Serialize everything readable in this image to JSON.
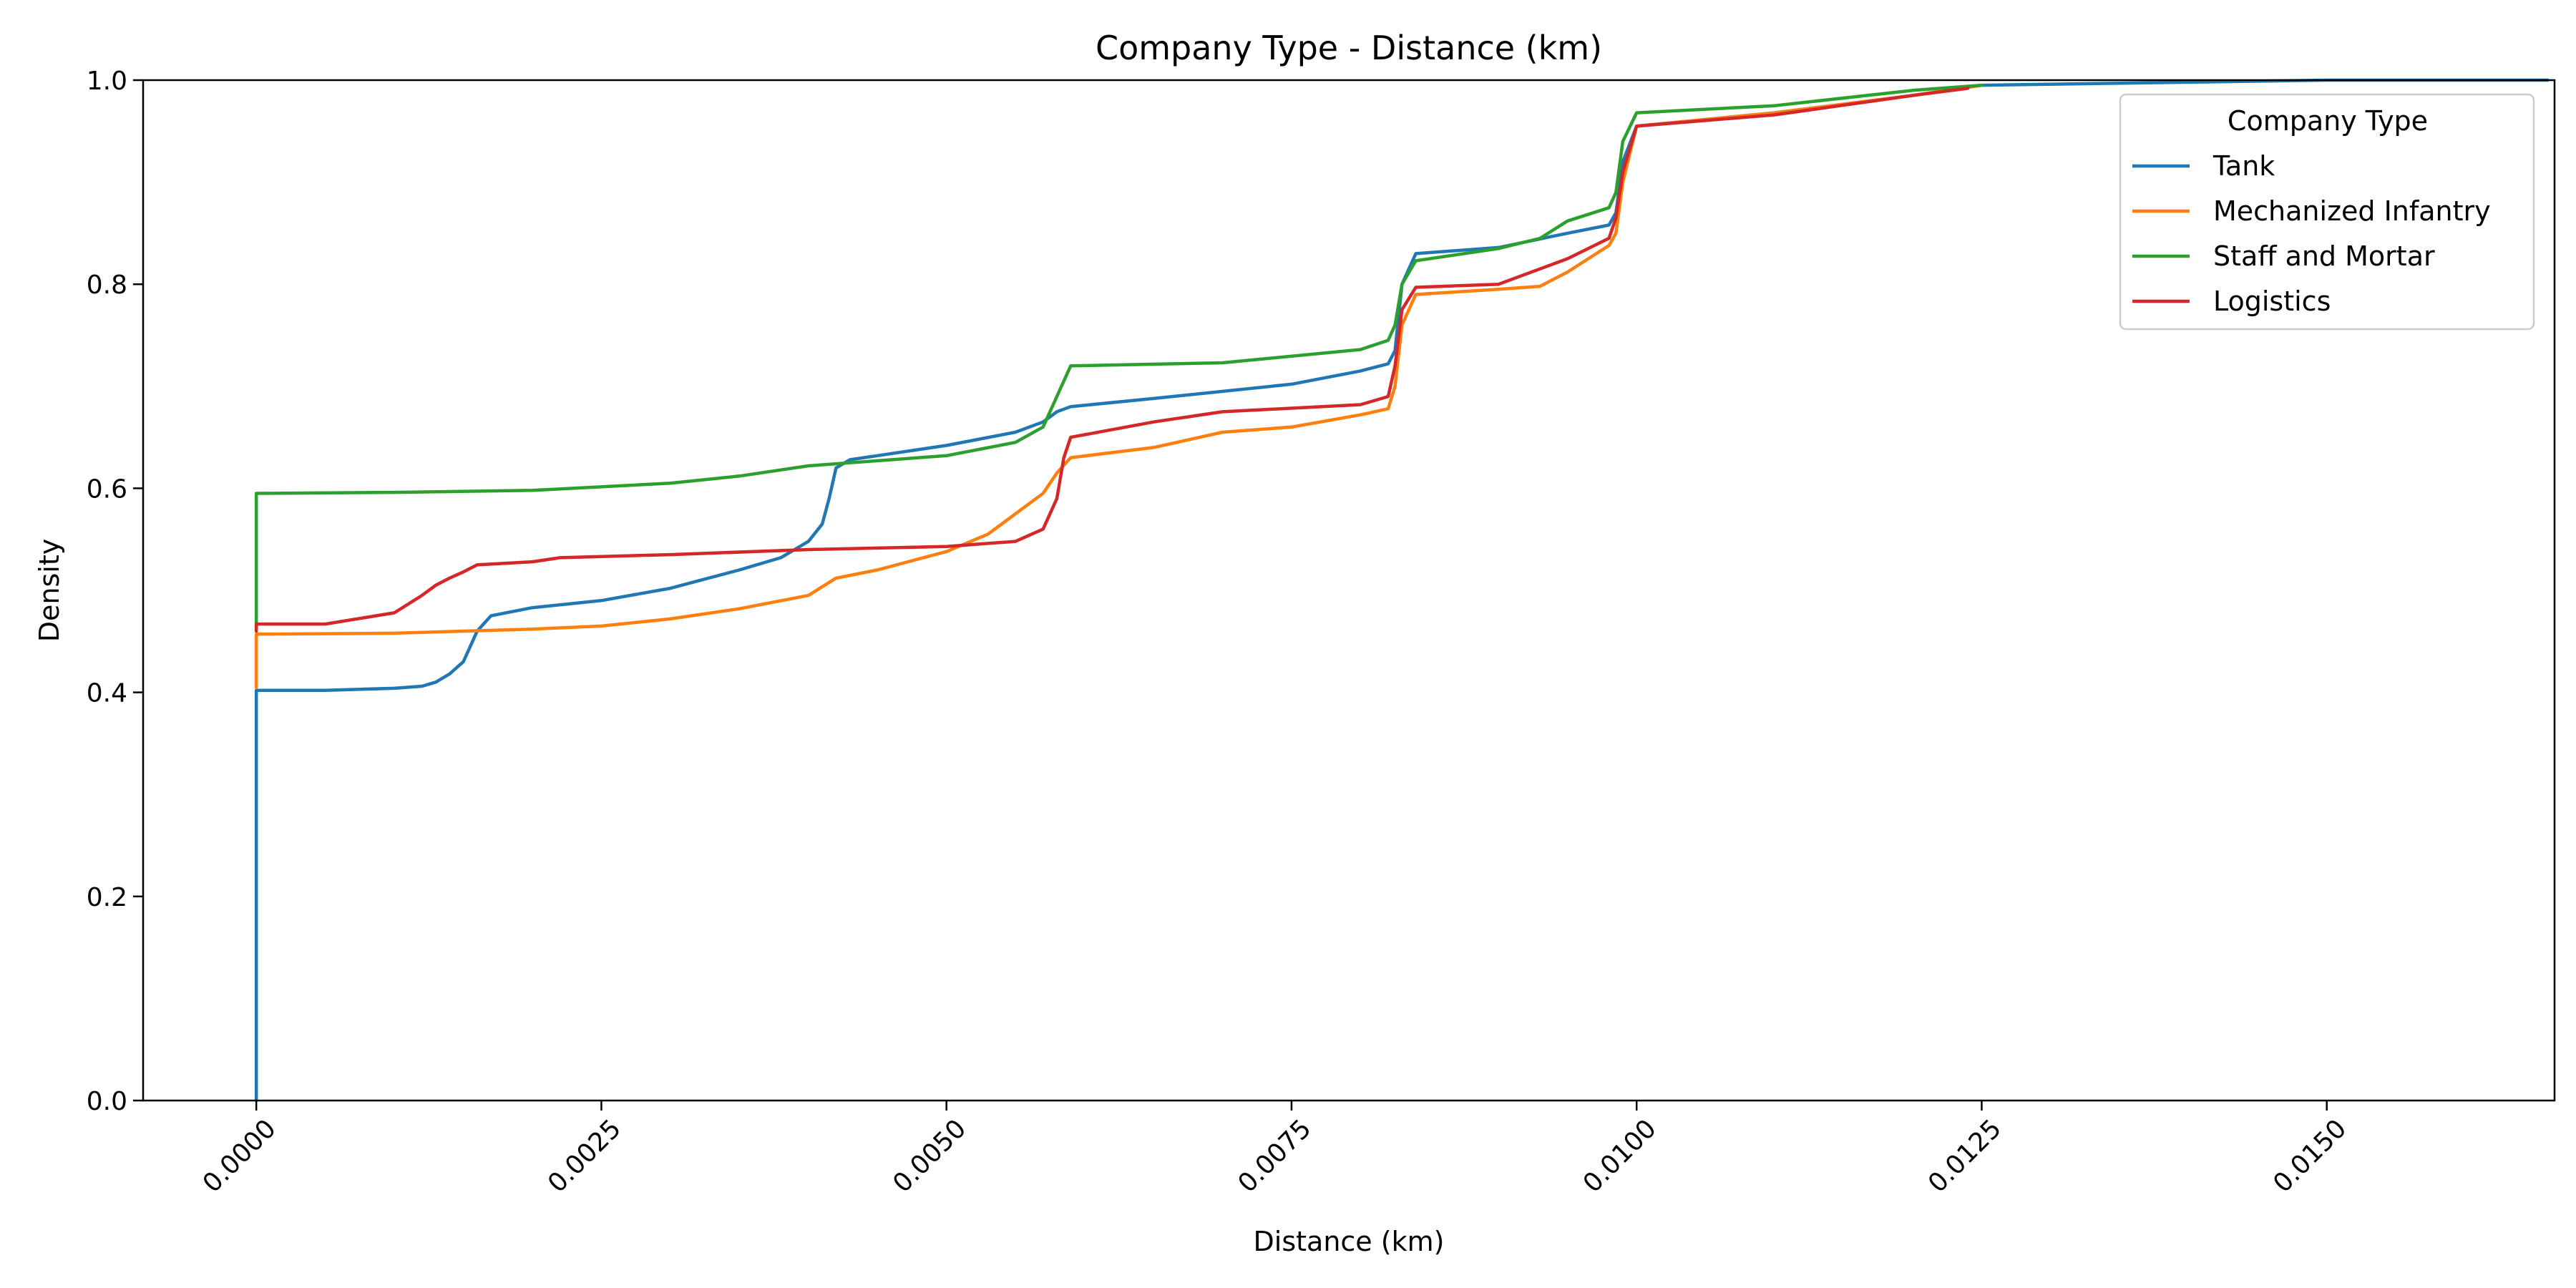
{
  "chart_data": {
    "type": "line",
    "title": "Company Type - Distance (km)",
    "xlabel": "Distance (km)",
    "ylabel": "Density",
    "xlim": [
      -0.00082,
      0.01665
    ],
    "ylim": [
      0.0,
      1.0
    ],
    "x_ticks": [
      0.0,
      0.0025,
      0.005,
      0.0075,
      0.01,
      0.0125,
      0.015
    ],
    "x_tick_labels": [
      "0.0000",
      "0.0025",
      "0.0050",
      "0.0075",
      "0.0100",
      "0.0125",
      "0.0150"
    ],
    "y_ticks": [
      0.0,
      0.2,
      0.4,
      0.6,
      0.8,
      1.0
    ],
    "y_tick_labels": [
      "0.0",
      "0.2",
      "0.4",
      "0.6",
      "0.8",
      "1.0"
    ],
    "grid": false,
    "legend": {
      "title": "Company Type",
      "position": "top-right"
    },
    "series": [
      {
        "name": "Tank",
        "color": "#1f77b4",
        "points": [
          [
            0,
            0
          ],
          [
            0,
            0.402
          ],
          [
            0.0005,
            0.402
          ],
          [
            0.001,
            0.404
          ],
          [
            0.0012,
            0.406
          ],
          [
            0.0013,
            0.41
          ],
          [
            0.0014,
            0.418
          ],
          [
            0.0015,
            0.43
          ],
          [
            0.00155,
            0.445
          ],
          [
            0.0016,
            0.46
          ],
          [
            0.0017,
            0.475
          ],
          [
            0.002,
            0.483
          ],
          [
            0.0025,
            0.49
          ],
          [
            0.003,
            0.502
          ],
          [
            0.0035,
            0.52
          ],
          [
            0.0038,
            0.532
          ],
          [
            0.004,
            0.548
          ],
          [
            0.0041,
            0.565
          ],
          [
            0.00415,
            0.59
          ],
          [
            0.0042,
            0.62
          ],
          [
            0.0043,
            0.628
          ],
          [
            0.0045,
            0.632
          ],
          [
            0.005,
            0.642
          ],
          [
            0.0055,
            0.655
          ],
          [
            0.0057,
            0.665
          ],
          [
            0.0058,
            0.675
          ],
          [
            0.0059,
            0.68
          ],
          [
            0.0065,
            0.688
          ],
          [
            0.0075,
            0.702
          ],
          [
            0.008,
            0.715
          ],
          [
            0.0082,
            0.722
          ],
          [
            0.00825,
            0.735
          ],
          [
            0.0083,
            0.8
          ],
          [
            0.0084,
            0.83
          ],
          [
            0.009,
            0.836
          ],
          [
            0.0095,
            0.85
          ],
          [
            0.0098,
            0.858
          ],
          [
            0.00985,
            0.87
          ],
          [
            0.0099,
            0.92
          ],
          [
            0.01,
            0.955
          ],
          [
            0.011,
            0.968
          ],
          [
            0.012,
            0.985
          ],
          [
            0.0125,
            0.995
          ],
          [
            0.014,
            0.998
          ],
          [
            0.015,
            1.0
          ],
          [
            0.0166,
            1.0
          ]
        ]
      },
      {
        "name": "Mechanized Infantry",
        "color": "#ff7f0e",
        "points": [
          [
            0,
            0.405
          ],
          [
            0,
            0.457
          ],
          [
            0.001,
            0.458
          ],
          [
            0.002,
            0.462
          ],
          [
            0.0025,
            0.465
          ],
          [
            0.003,
            0.472
          ],
          [
            0.0035,
            0.482
          ],
          [
            0.004,
            0.495
          ],
          [
            0.0042,
            0.512
          ],
          [
            0.0045,
            0.52
          ],
          [
            0.005,
            0.538
          ],
          [
            0.0053,
            0.555
          ],
          [
            0.0055,
            0.575
          ],
          [
            0.0057,
            0.595
          ],
          [
            0.0058,
            0.615
          ],
          [
            0.0059,
            0.63
          ],
          [
            0.0065,
            0.64
          ],
          [
            0.007,
            0.655
          ],
          [
            0.0075,
            0.66
          ],
          [
            0.008,
            0.672
          ],
          [
            0.0082,
            0.678
          ],
          [
            0.00825,
            0.7
          ],
          [
            0.0083,
            0.76
          ],
          [
            0.0084,
            0.79
          ],
          [
            0.009,
            0.795
          ],
          [
            0.0093,
            0.798
          ],
          [
            0.0095,
            0.812
          ],
          [
            0.0098,
            0.838
          ],
          [
            0.00985,
            0.85
          ],
          [
            0.0099,
            0.9
          ],
          [
            0.01,
            0.955
          ],
          [
            0.011,
            0.968
          ],
          [
            0.012,
            0.985
          ],
          [
            0.0125,
            0.995
          ]
        ]
      },
      {
        "name": "Staff and Mortar",
        "color": "#2ca02c",
        "points": [
          [
            0,
            0.46
          ],
          [
            0,
            0.595
          ],
          [
            0.001,
            0.596
          ],
          [
            0.002,
            0.598
          ],
          [
            0.003,
            0.605
          ],
          [
            0.0035,
            0.612
          ],
          [
            0.004,
            0.622
          ],
          [
            0.005,
            0.632
          ],
          [
            0.0055,
            0.645
          ],
          [
            0.0057,
            0.66
          ],
          [
            0.0058,
            0.69
          ],
          [
            0.0059,
            0.72
          ],
          [
            0.007,
            0.723
          ],
          [
            0.008,
            0.736
          ],
          [
            0.0082,
            0.745
          ],
          [
            0.00825,
            0.76
          ],
          [
            0.0083,
            0.8
          ],
          [
            0.0084,
            0.823
          ],
          [
            0.009,
            0.835
          ],
          [
            0.0093,
            0.845
          ],
          [
            0.0095,
            0.862
          ],
          [
            0.0098,
            0.875
          ],
          [
            0.00985,
            0.89
          ],
          [
            0.0099,
            0.94
          ],
          [
            0.01,
            0.968
          ],
          [
            0.011,
            0.975
          ],
          [
            0.012,
            0.99
          ],
          [
            0.0125,
            0.995
          ]
        ]
      },
      {
        "name": "Logistics",
        "color": "#d62728",
        "points": [
          [
            0,
            0.46
          ],
          [
            0,
            0.467
          ],
          [
            0.0005,
            0.467
          ],
          [
            0.001,
            0.478
          ],
          [
            0.0012,
            0.495
          ],
          [
            0.0013,
            0.505
          ],
          [
            0.0014,
            0.512
          ],
          [
            0.0015,
            0.518
          ],
          [
            0.0016,
            0.525
          ],
          [
            0.002,
            0.528
          ],
          [
            0.0022,
            0.532
          ],
          [
            0.003,
            0.535
          ],
          [
            0.004,
            0.54
          ],
          [
            0.005,
            0.543
          ],
          [
            0.0055,
            0.548
          ],
          [
            0.0057,
            0.56
          ],
          [
            0.0058,
            0.59
          ],
          [
            0.00585,
            0.63
          ],
          [
            0.0059,
            0.65
          ],
          [
            0.0065,
            0.665
          ],
          [
            0.007,
            0.675
          ],
          [
            0.008,
            0.682
          ],
          [
            0.0082,
            0.69
          ],
          [
            0.00825,
            0.72
          ],
          [
            0.0083,
            0.775
          ],
          [
            0.0084,
            0.797
          ],
          [
            0.009,
            0.8
          ],
          [
            0.0095,
            0.825
          ],
          [
            0.0098,
            0.845
          ],
          [
            0.00985,
            0.865
          ],
          [
            0.0099,
            0.91
          ],
          [
            0.01,
            0.955
          ],
          [
            0.011,
            0.966
          ],
          [
            0.012,
            0.985
          ],
          [
            0.0124,
            0.992
          ]
        ]
      }
    ]
  }
}
